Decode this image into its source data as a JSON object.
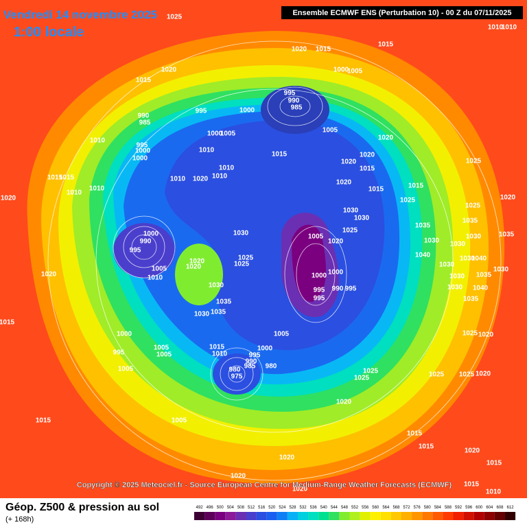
{
  "header": {
    "date": "Vendredi 14 novembre 2025",
    "time": "1:00 locale",
    "model": "Ensemble ECMWF ENS  (Perturbation 10)  -  00 Z du 07/11/2025"
  },
  "copyright": "Copyright © 2025 Meteociel.fr - Source European Centre for Medium-Range Weather Forecasts (ECMWF)",
  "footer": {
    "title": "Géop. Z500 & pression au sol",
    "lead": "(+ 168h)"
  },
  "legend": {
    "ticks": [
      492,
      496,
      500,
      504,
      508,
      512,
      516,
      520,
      524,
      528,
      532,
      536,
      540,
      544,
      548,
      552,
      556,
      560,
      564,
      568,
      572,
      576,
      580,
      584,
      588,
      592,
      596,
      600,
      604,
      608,
      612
    ],
    "colors": [
      "#3d0033",
      "#5c0059",
      "#7a0080",
      "#8c1a99",
      "#6b2fb3",
      "#4a3fcc",
      "#2b4fe0",
      "#1a5ff0",
      "#0f7ff5",
      "#0ab0f5",
      "#00d0e0",
      "#00e0c0",
      "#00e090",
      "#30e060",
      "#80ec30",
      "#b0f020",
      "#e0f000",
      "#fff000",
      "#ffe000",
      "#ffc800",
      "#ffb000",
      "#ff9600",
      "#ff7800",
      "#ff5a00",
      "#ff3c00",
      "#f02000",
      "#d01000",
      "#b00000",
      "#8c0000",
      "#640000",
      "#300000"
    ]
  },
  "pressure_labels": [
    1025,
    1010,
    1010,
    1020,
    1015,
    1015,
    1020,
    1015,
    1000,
    1005,
    995,
    990,
    985,
    1000,
    995,
    990,
    985,
    1005,
    1020,
    1010,
    995,
    1000,
    1000,
    1010,
    1005,
    1000,
    1015,
    1020,
    1025,
    1020,
    1015,
    1010,
    1010,
    1020,
    1010,
    1015,
    1015,
    1020,
    1015,
    1015,
    1010,
    1010,
    1020,
    1025,
    1030,
    1030,
    1025,
    1020,
    1035,
    1030,
    1000,
    990,
    995,
    1005,
    1020,
    1025,
    1030,
    1005,
    1010,
    1020,
    1020,
    1025,
    1025,
    1030,
    1000,
    1000,
    995,
    995,
    990,
    995,
    1020,
    1035,
    1035,
    1030,
    1015,
    1000,
    1005,
    1005,
    1005,
    995,
    1015,
    1010,
    1000,
    995,
    990,
    985,
    980,
    975,
    980,
    1005,
    1025,
    1025,
    1025,
    1025,
    1020,
    1020,
    1015,
    1005,
    1015,
    1015,
    1020,
    1020,
    1015,
    1020,
    1020,
    1010,
    1015,
    1035,
    1030,
    1030,
    1040,
    1030,
    1030,
    1035,
    1030,
    1030,
    1040,
    1035,
    1025,
    1020,
    1035,
    1030,
    1040
  ]
}
